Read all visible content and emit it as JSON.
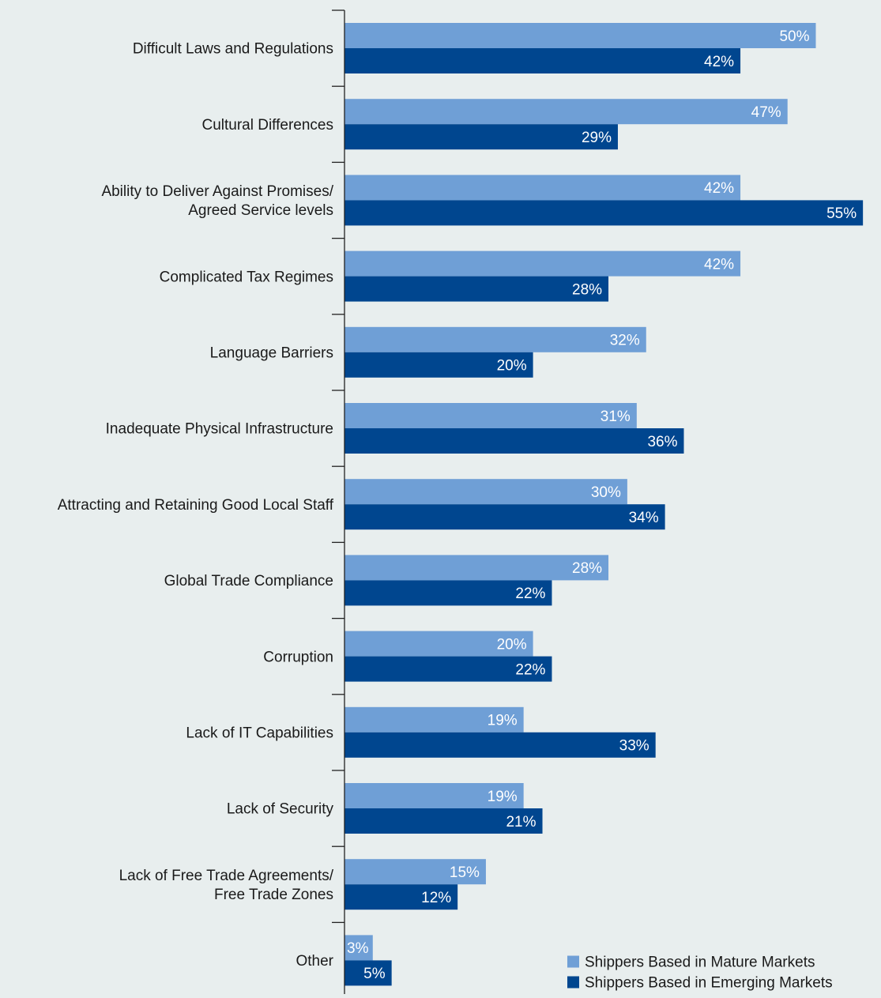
{
  "colors": {
    "background": "#e8eeee",
    "mature": "#6f9fd6",
    "emerging": "#00468f",
    "axis": "#222222",
    "text": "#1a1a1a",
    "label_on_bar": "#ffffff"
  },
  "chart_data": {
    "type": "bar",
    "orientation": "horizontal",
    "categories": [
      [
        "Difficult Laws and Regulations"
      ],
      [
        "Cultural Differences"
      ],
      [
        "Ability to Deliver Against Promises/",
        "Agreed Service levels"
      ],
      [
        "Complicated Tax Regimes"
      ],
      [
        "Language Barriers"
      ],
      [
        "Inadequate Physical Infrastructure"
      ],
      [
        "Attracting and Retaining Good Local Staff"
      ],
      [
        "Global Trade Compliance"
      ],
      [
        "Corruption"
      ],
      [
        "Lack of IT Capabilities"
      ],
      [
        "Lack of Security"
      ],
      [
        "Lack of Free Trade Agreements/",
        "Free Trade Zones"
      ],
      [
        "Other"
      ]
    ],
    "series": [
      {
        "name": "Shippers Based in Mature Markets",
        "color": "#6f9fd6",
        "values": [
          50,
          47,
          42,
          42,
          32,
          31,
          30,
          28,
          20,
          19,
          19,
          15,
          3
        ],
        "labels": [
          "50%",
          "47%",
          "42%",
          "42%",
          "32%",
          "31%",
          "30%",
          "28%",
          "20%",
          "19%",
          "19%",
          "15%",
          "3%"
        ]
      },
      {
        "name": "Shippers Based in Emerging Markets",
        "color": "#00468f",
        "values": [
          42,
          29,
          55,
          28,
          20,
          36,
          34,
          22,
          22,
          33,
          21,
          12,
          5
        ],
        "labels": [
          "42%",
          "29%",
          "55%",
          "28%",
          "20%",
          "36%",
          "34%",
          "22%",
          "22%",
          "33%",
          "21%",
          "12%",
          "5%"
        ]
      }
    ],
    "value_unit": "%",
    "xlim": [
      0,
      55
    ],
    "legend": {
      "position": "bottom-right"
    },
    "grid": false
  }
}
